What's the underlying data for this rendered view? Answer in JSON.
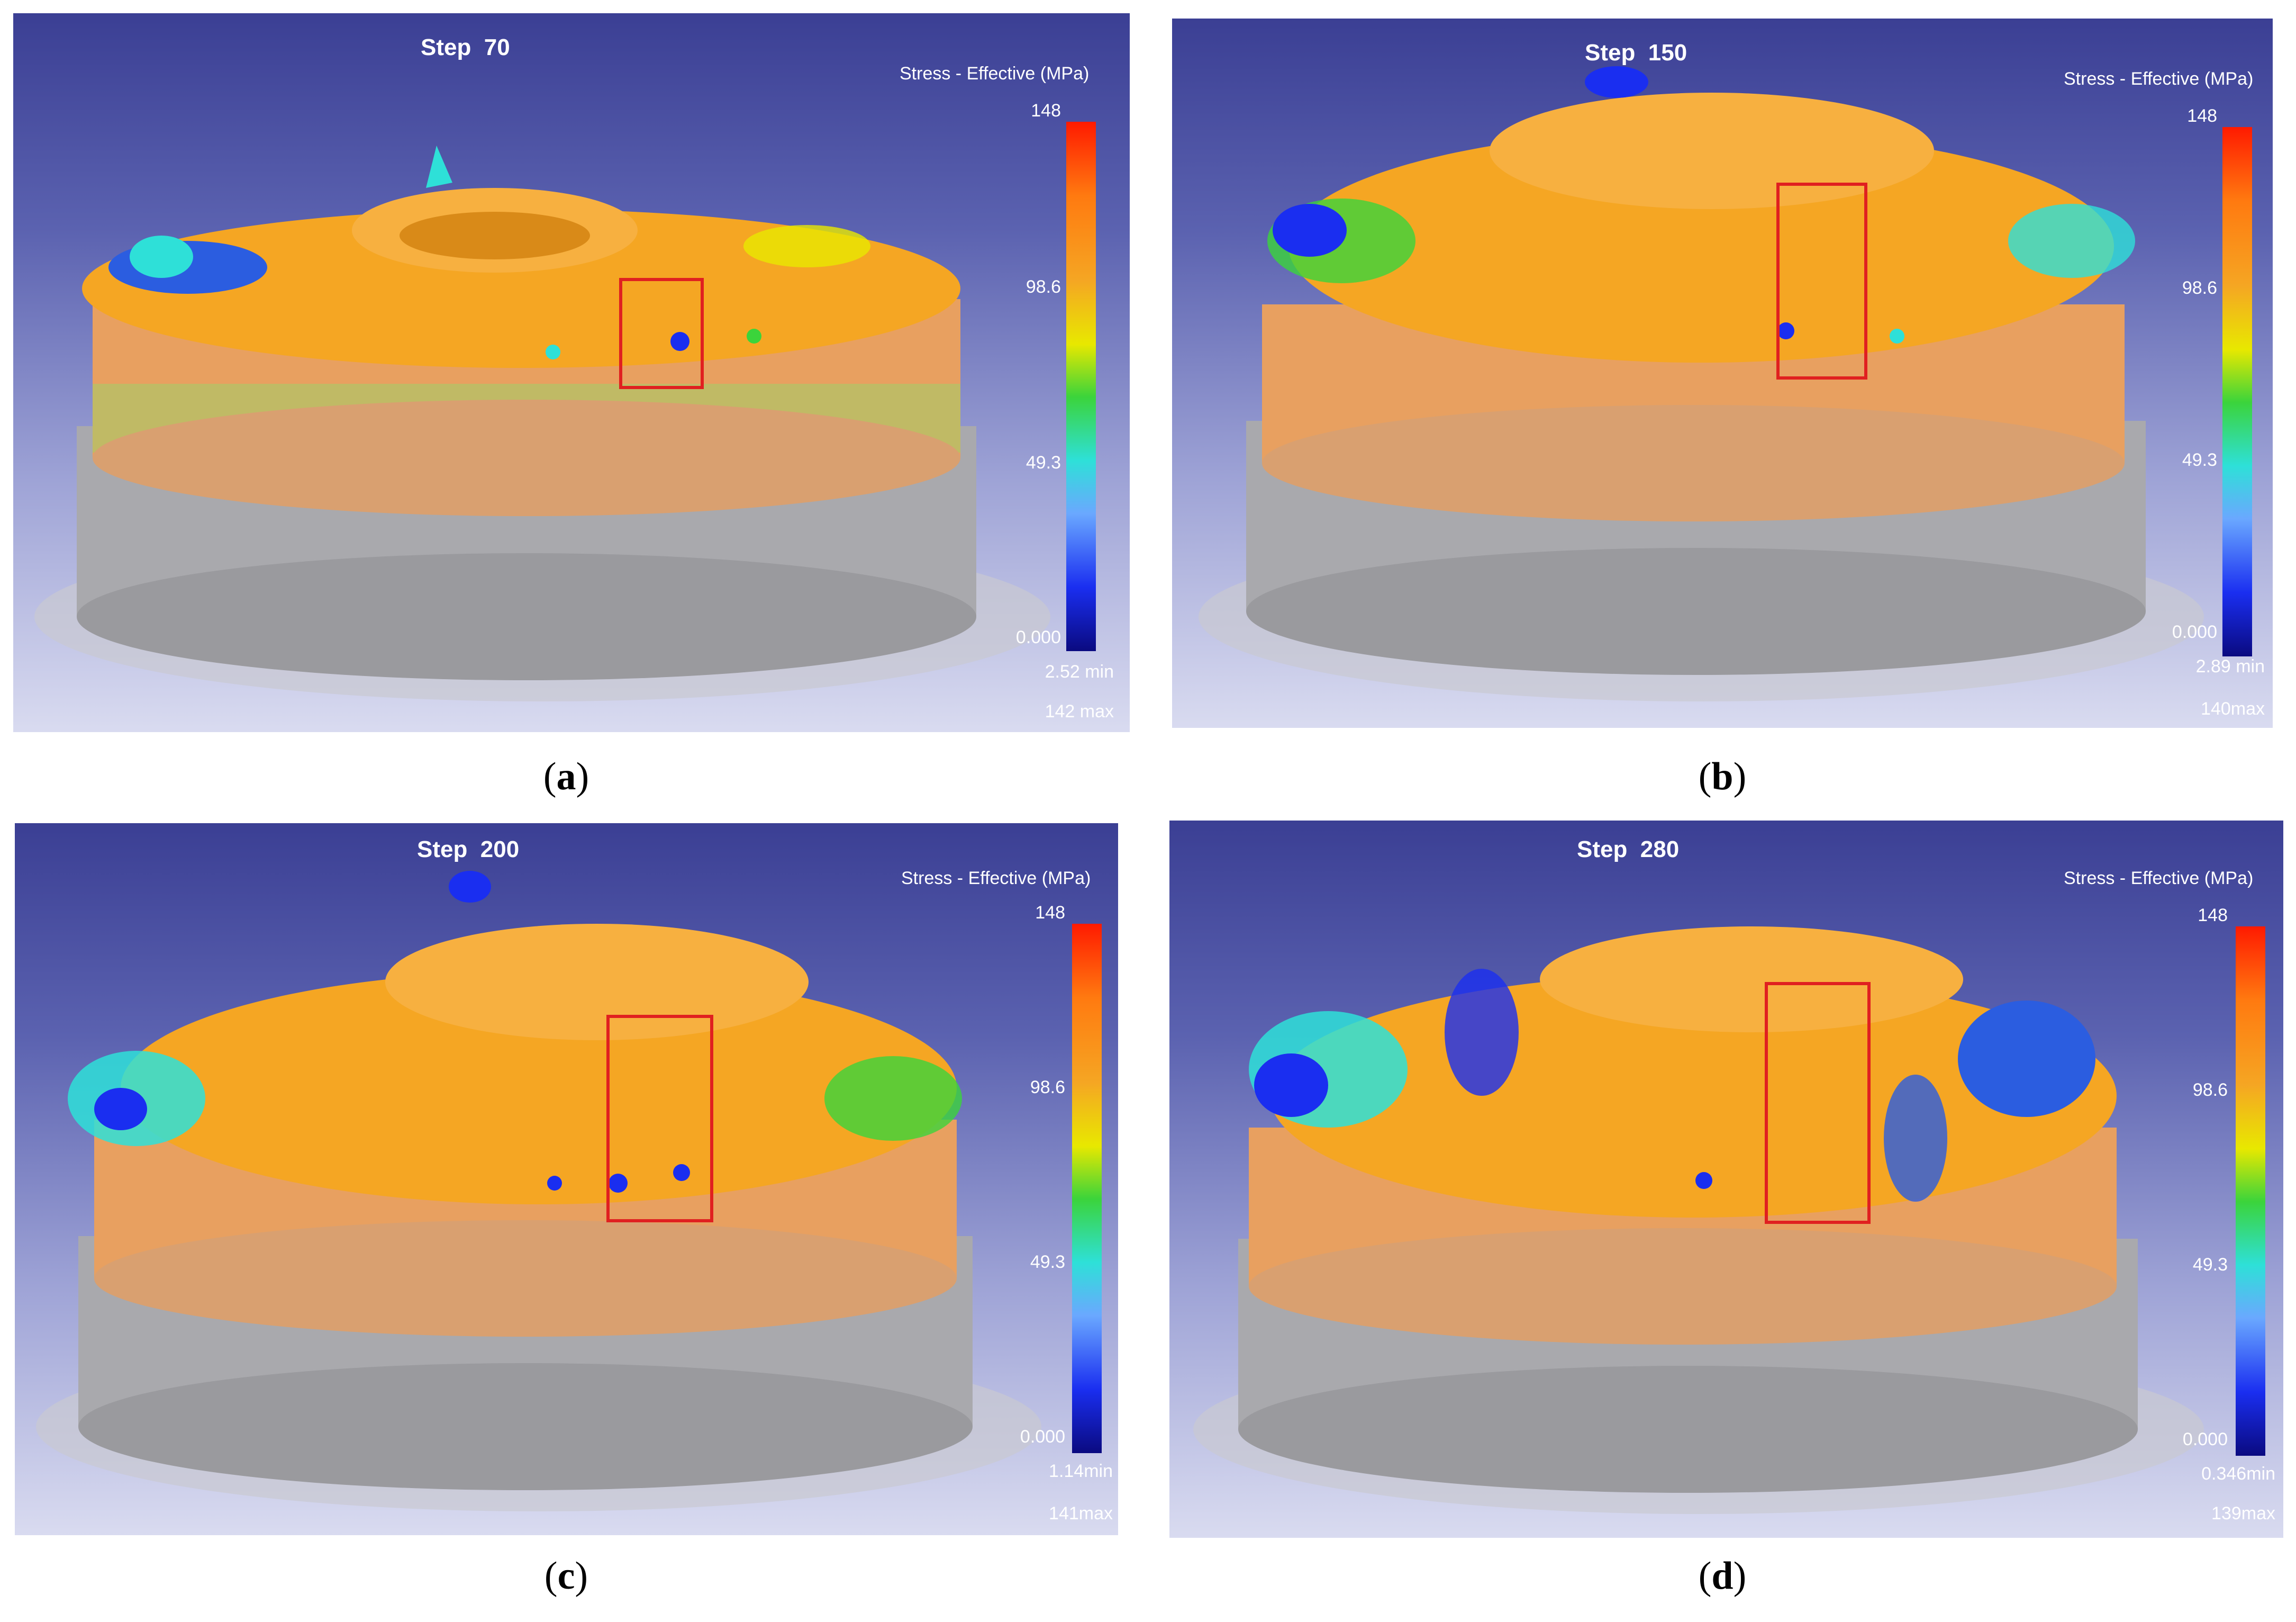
{
  "panels": [
    {
      "id": "a",
      "step": "Step  70",
      "legend_title": "Stress - Effective (MPa)",
      "ticks": [
        "148",
        "98.6",
        "49.3",
        "0.000"
      ],
      "min": "2.52 min",
      "max": "142 max",
      "caption_letter": "a"
    },
    {
      "id": "b",
      "step": "Step  150",
      "legend_title": "Stress - Effective (MPa)",
      "ticks": [
        "148",
        "98.6",
        "49.3",
        "0.000"
      ],
      "min": "2.89 min",
      "max": "140max",
      "caption_letter": "b"
    },
    {
      "id": "c",
      "step": "Step  200",
      "legend_title": "Stress - Effective (MPa)",
      "ticks": [
        "148",
        "98.6",
        "49.3",
        "0.000"
      ],
      "min": "1.14min",
      "max": "141max",
      "caption_letter": "c"
    },
    {
      "id": "d",
      "step": "Step  280",
      "legend_title": "Stress - Effective (MPa)",
      "ticks": [
        "148",
        "98.6",
        "49.3",
        "0.000"
      ],
      "min": "0.346min",
      "max": "139max",
      "caption_letter": "d"
    }
  ],
  "colors": {
    "highlight_box": "#e02020",
    "workpiece": "#f5a623",
    "die": "#b8b8b8"
  }
}
